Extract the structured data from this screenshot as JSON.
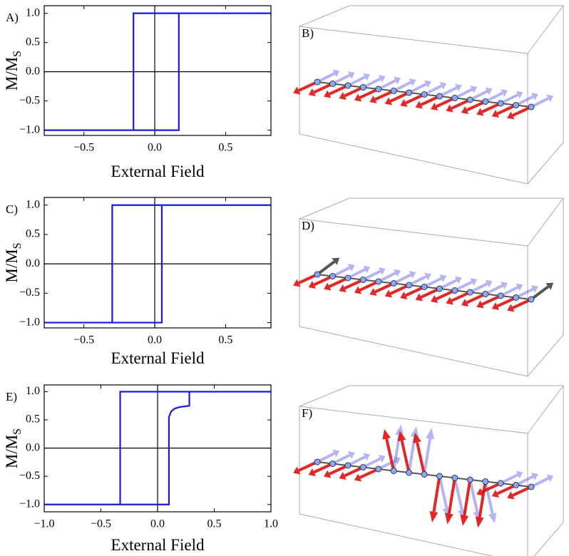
{
  "chart_data": [
    {
      "type": "line",
      "panel_label": "A)",
      "xlabel": "External Field",
      "ylabel": {
        "main": "M/M",
        "sub": "S"
      },
      "xlim": [
        -0.78,
        0.82
      ],
      "ylim": [
        -1.09,
        1.13
      ],
      "xticks": [
        {
          "value": -0.5,
          "label": "−0.5"
        },
        {
          "value": 0,
          "label": "0.0"
        },
        {
          "value": 0.5,
          "label": "0.5"
        }
      ],
      "yticks": [
        {
          "value": -1,
          "label": "−1.0"
        },
        {
          "value": -0.5,
          "label": "−0.5"
        },
        {
          "value": 0,
          "label": "0.0"
        },
        {
          "value": 0.5,
          "label": "0.5"
        },
        {
          "value": 1,
          "label": "1.0"
        }
      ],
      "series": [
        {
          "color": "#1a1adc",
          "x": [
            -0.78,
            0.17,
            0.17,
            0.82,
            -0.15,
            -0.15,
            -0.78
          ],
          "values": [
            -1,
            -1,
            1,
            1,
            1,
            -1,
            -1
          ]
        }
      ]
    },
    {
      "type": "line",
      "panel_label": "C)",
      "xlabel": "External Field",
      "ylabel": {
        "main": "M/M",
        "sub": "S"
      },
      "xlim": [
        -0.78,
        0.82
      ],
      "ylim": [
        -1.09,
        1.13
      ],
      "xticks": [
        {
          "value": -0.5,
          "label": "−0.5"
        },
        {
          "value": 0,
          "label": "0.0"
        },
        {
          "value": 0.5,
          "label": "0.5"
        }
      ],
      "yticks": [
        {
          "value": -1,
          "label": "−1.0"
        },
        {
          "value": -0.5,
          "label": "−0.5"
        },
        {
          "value": 0,
          "label": "0.0"
        },
        {
          "value": 0.5,
          "label": "0.5"
        },
        {
          "value": 1,
          "label": "1.0"
        }
      ],
      "series": [
        {
          "color": "#1a1adc",
          "x": [
            -0.78,
            0.05,
            0.05,
            0.82,
            -0.3,
            -0.3,
            -0.78
          ],
          "values": [
            -1,
            -1,
            1,
            1,
            1,
            -1,
            -1
          ]
        }
      ]
    },
    {
      "type": "line",
      "panel_label": "E)",
      "xlabel": "External Field",
      "ylabel": {
        "main": "M/M",
        "sub": "S"
      },
      "xlim": [
        -1,
        1
      ],
      "ylim": [
        -1.13,
        1.12
      ],
      "xticks": [
        {
          "value": -1,
          "label": "−1.0"
        },
        {
          "value": -0.5,
          "label": "−0.5"
        },
        {
          "value": 0,
          "label": "0.0"
        },
        {
          "value": 0.5,
          "label": "0.5"
        },
        {
          "value": 1,
          "label": "1.0"
        }
      ],
      "yticks": [
        {
          "value": -1,
          "label": "−1.0"
        },
        {
          "value": -0.5,
          "label": "−0.5"
        },
        {
          "value": 0,
          "label": "0.0"
        },
        {
          "value": 0.5,
          "label": "0.5"
        },
        {
          "value": 1,
          "label": "1.0"
        }
      ],
      "series": [
        {
          "color": "#1a1adc",
          "x": [
            -1,
            0.1,
            0.1,
            0.12,
            0.15,
            0.2,
            0.28,
            0.28,
            1,
            -0.33,
            -0.33,
            -1
          ],
          "values": [
            -1,
            -1,
            0.55,
            0.65,
            0.7,
            0.73,
            0.75,
            1,
            1,
            1,
            -1,
            -1
          ]
        }
      ]
    }
  ],
  "illustrations": [
    {
      "label": "B)"
    },
    {
      "label": "D)"
    },
    {
      "label": "F)"
    }
  ]
}
